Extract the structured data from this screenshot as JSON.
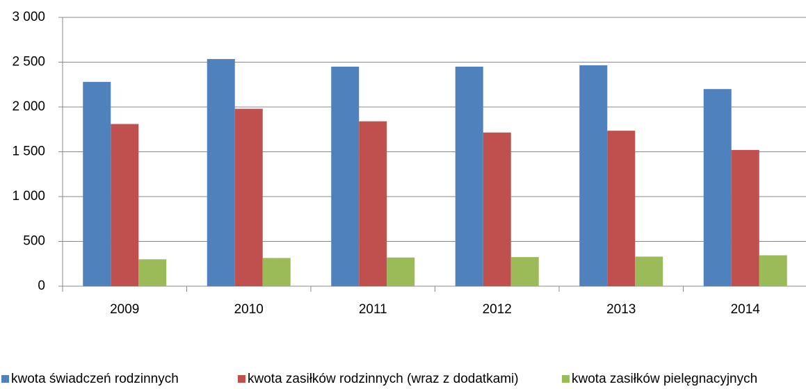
{
  "chart_data": {
    "type": "bar",
    "categories": [
      "2009",
      "2010",
      "2011",
      "2012",
      "2013",
      "2014"
    ],
    "series": [
      {
        "name": "kwota świadczeń rodzinnych",
        "color": "#4f81bd",
        "values": [
          2280,
          2535,
          2450,
          2450,
          2465,
          2200
        ]
      },
      {
        "name": "kwota zasiłków rodzinnych (wraz z dodatkami)",
        "color": "#c0504d",
        "values": [
          1810,
          1980,
          1840,
          1715,
          1735,
          1520
        ]
      },
      {
        "name": "kwota zasiłków pielęgnacyjnych",
        "color": "#9bbb59",
        "values": [
          300,
          315,
          320,
          325,
          330,
          345
        ]
      }
    ],
    "ylim": [
      0,
      3000
    ],
    "yticks": [
      0,
      500,
      {
        "value": 1000,
        "label": "1 000"
      },
      {
        "value": 1500,
        "label": "1 500"
      },
      {
        "value": 2000,
        "label": "2 000"
      },
      {
        "value": 2500,
        "label": "2 500"
      },
      {
        "value": 3000,
        "label": "3 000"
      }
    ],
    "grid": true,
    "legend": "bottom"
  }
}
